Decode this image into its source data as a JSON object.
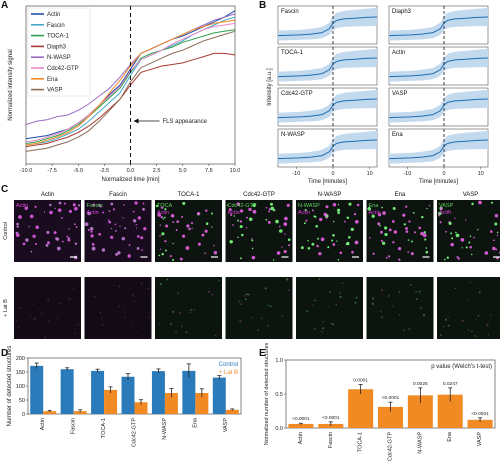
{
  "panel_letters": {
    "a": "A",
    "b": "B",
    "c": "C",
    "d": "D",
    "e": "E"
  },
  "chart_data": [
    {
      "id": "A",
      "type": "line",
      "xlabel": "Normalized time [min]",
      "ylabel": "Normalized intensity signal",
      "xlim": [
        -10,
        10
      ],
      "ylim": [
        0,
        1
      ],
      "xticks": [
        "-10.0",
        "-7.5",
        "-5.0",
        "-2.5",
        "0.0",
        "2.5",
        "5.0",
        "7.5",
        "10.0"
      ],
      "legend_position": "top-left",
      "annotation": "FLS appearance",
      "x": [
        -10,
        -9,
        -8,
        -7,
        -6,
        -5,
        -4,
        -3,
        -2,
        -1,
        0,
        1,
        2,
        3,
        4,
        5,
        6,
        7,
        8,
        9,
        10
      ],
      "series": [
        {
          "name": "Actin",
          "color": "#1f4fa8",
          "values": [
            0.16,
            0.17,
            0.18,
            0.2,
            0.22,
            0.26,
            0.31,
            0.37,
            0.44,
            0.5,
            0.6,
            0.7,
            0.73,
            0.76,
            0.79,
            0.81,
            0.84,
            0.87,
            0.9,
            0.93,
            0.97
          ]
        },
        {
          "name": "Fascin",
          "color": "#47a7c9",
          "values": [
            0.12,
            0.13,
            0.14,
            0.16,
            0.19,
            0.22,
            0.27,
            0.33,
            0.39,
            0.45,
            0.56,
            0.66,
            0.69,
            0.72,
            0.75,
            0.78,
            0.82,
            0.85,
            0.88,
            0.91,
            0.93
          ]
        },
        {
          "name": "TOCA-1",
          "color": "#2ba14b",
          "values": [
            0.13,
            0.14,
            0.16,
            0.18,
            0.21,
            0.25,
            0.3,
            0.36,
            0.42,
            0.48,
            0.58,
            0.67,
            0.7,
            0.72,
            0.74,
            0.77,
            0.79,
            0.81,
            0.83,
            0.84,
            0.85
          ]
        },
        {
          "name": "Diaph3",
          "color": "#a83a30",
          "values": [
            0.11,
            0.12,
            0.13,
            0.15,
            0.17,
            0.2,
            0.24,
            0.29,
            0.35,
            0.41,
            0.5,
            0.58,
            0.6,
            0.62,
            0.63,
            0.64,
            0.66,
            0.68,
            0.7,
            0.7,
            0.69
          ]
        },
        {
          "name": "N-WASP",
          "color": "#9a6cc4",
          "values": [
            0.25,
            0.27,
            0.28,
            0.3,
            0.31,
            0.34,
            0.38,
            0.43,
            0.48,
            0.55,
            0.63,
            0.7,
            0.73,
            0.76,
            0.79,
            0.82,
            0.85,
            0.88,
            0.91,
            0.93,
            0.95
          ]
        },
        {
          "name": "Cdc42-GTP",
          "color": "#e98ac7",
          "values": [
            0.14,
            0.15,
            0.17,
            0.19,
            0.22,
            0.26,
            0.31,
            0.37,
            0.43,
            0.49,
            0.59,
            0.66,
            0.69,
            0.72,
            0.76,
            0.79,
            0.82,
            0.85,
            0.87,
            0.88,
            0.89
          ]
        },
        {
          "name": "Ena",
          "color": "#f28a24",
          "values": [
            0.12,
            0.13,
            0.15,
            0.17,
            0.2,
            0.24,
            0.3,
            0.37,
            0.45,
            0.53,
            0.62,
            0.7,
            0.73,
            0.76,
            0.79,
            0.82,
            0.85,
            0.87,
            0.89,
            0.9,
            0.91
          ]
        },
        {
          "name": "VASP",
          "color": "#8a6a55",
          "values": [
            0.08,
            0.09,
            0.1,
            0.12,
            0.14,
            0.17,
            0.21,
            0.27,
            0.34,
            0.41,
            0.52,
            0.61,
            0.64,
            0.67,
            0.7,
            0.72,
            0.75,
            0.78,
            0.8,
            0.82,
            0.84
          ]
        }
      ]
    },
    {
      "id": "B",
      "type": "area",
      "xlabel": "Time [minutes]",
      "ylabel": "Intensity [a.u.]",
      "xlim": [
        -15,
        12
      ],
      "xticks": [
        "-10",
        "0",
        "10"
      ],
      "subplot_titles": [
        "Fascin",
        "Diaph3",
        "TOCA-1",
        "Actin",
        "Cdc42-GTP",
        "VASP",
        "N-WASP",
        "Ena"
      ],
      "x": [
        -15,
        -12,
        -9,
        -6,
        -3,
        -1,
        0,
        1,
        3,
        6,
        9,
        12
      ],
      "mean": [
        0.22,
        0.23,
        0.24,
        0.26,
        0.3,
        0.4,
        0.55,
        0.62,
        0.66,
        0.68,
        0.7,
        0.71
      ],
      "band": [
        0.13,
        0.13,
        0.13,
        0.14,
        0.15,
        0.16,
        0.18,
        0.2,
        0.21,
        0.22,
        0.23,
        0.24
      ],
      "color": "#1f6fb5",
      "band_color": "#c3d9ee"
    },
    {
      "id": "D",
      "type": "bar",
      "ylabel": "Number of detected structures",
      "ylim": [
        0,
        200
      ],
      "yticks": [
        "0",
        "50",
        "100",
        "150",
        "200"
      ],
      "categories": [
        "Actin",
        "Fascin",
        "TOCA-1",
        "Cdc42-GTP",
        "N-WASP",
        "Ena",
        "VASP"
      ],
      "series": [
        {
          "name": "Control",
          "color": "#2b7bba",
          "values": [
            172,
            160,
            154,
            133,
            153,
            154,
            130
          ],
          "errors": [
            10,
            5,
            6,
            11,
            8,
            25,
            7
          ]
        },
        {
          "name": "+ Lat B",
          "color": "#f28a24",
          "values": [
            10,
            10,
            86,
            42,
            75,
            75,
            15
          ],
          "errors": [
            3,
            5,
            11,
            9,
            16,
            15,
            3
          ]
        }
      ],
      "legend_position": "top-right"
    },
    {
      "id": "E",
      "type": "bar",
      "ylabel": "Normalized number of detected structures",
      "ylim": [
        0,
        1
      ],
      "yticks": [
        "0.0",
        "0.5",
        "1.0"
      ],
      "categories": [
        "Actin",
        "Fascin",
        "TOCA-1",
        "Cdc42-GTP",
        "N-WASP",
        "Ena",
        "VASP"
      ],
      "values": [
        0.06,
        0.06,
        0.57,
        0.31,
        0.48,
        0.49,
        0.12
      ],
      "errors": [
        0.01,
        0.03,
        0.07,
        0.07,
        0.11,
        0.1,
        0.03
      ],
      "pvalue_labels": [
        "<0.0001",
        "<0.0001",
        "0.0001",
        "<0.0001",
        "0.0025",
        "0.0247",
        "<0.0001"
      ],
      "annotation": "p value (Welch's t-test)",
      "color": "#f28a24"
    }
  ],
  "micrographs": {
    "row_labels": [
      "Control",
      "+ Lat B"
    ],
    "columns": [
      {
        "title": "Actin",
        "labels": [
          "Actin"
        ],
        "label_colors": [
          "#e23fe2"
        ]
      },
      {
        "title": "Fascin",
        "labels": [
          "Fascin",
          "Actin"
        ],
        "label_colors": [
          "#5fd35f",
          "#e23fe2"
        ]
      },
      {
        "title": "TOCA-1",
        "labels": [
          "TOCA",
          "Actin"
        ],
        "label_colors": [
          "#5fd35f",
          "#e23fe2"
        ]
      },
      {
        "title": "Cdc42-GTP",
        "labels": [
          "Cdc42-GTP",
          "Actin"
        ],
        "label_colors": [
          "#5fd35f",
          "#e23fe2"
        ]
      },
      {
        "title": "N-WASP",
        "labels": [
          "N-WASP",
          "Actin"
        ],
        "label_colors": [
          "#5fd35f",
          "#e23fe2"
        ]
      },
      {
        "title": "Ena",
        "labels": [
          "Ena",
          "Actin"
        ],
        "label_colors": [
          "#5fd35f",
          "#e23fe2"
        ]
      },
      {
        "title": "VASP",
        "labels": [
          "VASP",
          "Actin"
        ],
        "label_colors": [
          "#5fd35f",
          "#e23fe2"
        ]
      }
    ]
  }
}
